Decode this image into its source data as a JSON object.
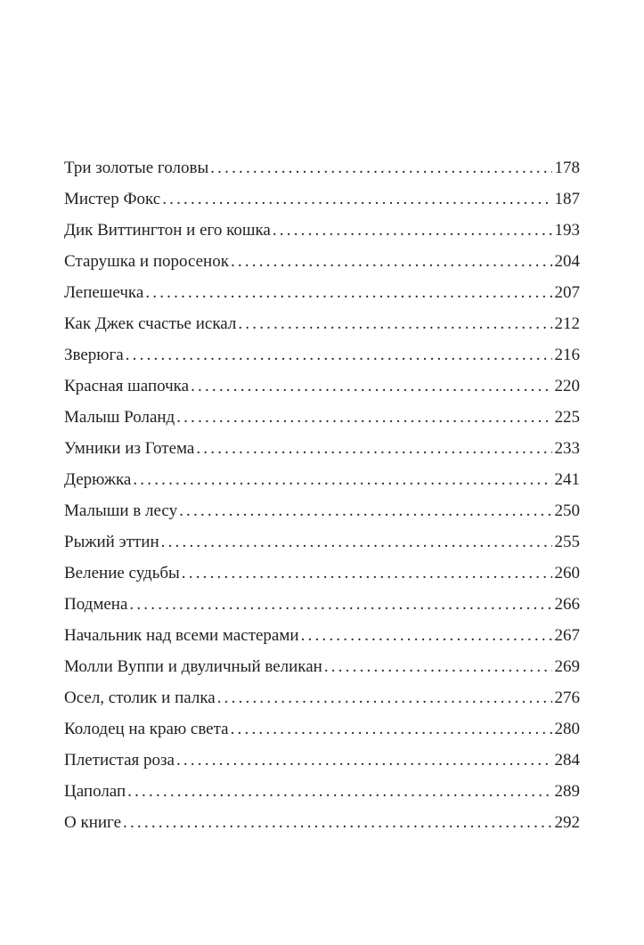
{
  "toc": [
    {
      "title": "Три золотые головы",
      "page": "178"
    },
    {
      "title": "Мистер Фокс",
      "page": "187"
    },
    {
      "title": "Дик Виттингтон и его кошка",
      "page": "193"
    },
    {
      "title": "Старушка и поросенок",
      "page": "204"
    },
    {
      "title": "Лепешечка",
      "page": "207"
    },
    {
      "title": "Как Джек счастье искал",
      "page": "212"
    },
    {
      "title": "Зверюга",
      "page": "216"
    },
    {
      "title": "Красная шапочка",
      "page": "220"
    },
    {
      "title": "Малыш Роланд",
      "page": "225"
    },
    {
      "title": "Умники из Готема",
      "page": "233"
    },
    {
      "title": "Дерюжка",
      "page": "241"
    },
    {
      "title": "Малыши в лесу",
      "page": "250"
    },
    {
      "title": "Рыжий эттин",
      "page": "255"
    },
    {
      "title": "Веление судьбы",
      "page": "260"
    },
    {
      "title": "Подмена",
      "page": "266"
    },
    {
      "title": "Начальник над всеми мастерами",
      "page": "267"
    },
    {
      "title": "Молли Вуппи и двуличный великан",
      "page": "269"
    },
    {
      "title": "Осел, столик и палка",
      "page": "276"
    },
    {
      "title": "Колодец на краю света",
      "page": "280"
    },
    {
      "title": "Плетистая роза",
      "page": "284"
    },
    {
      "title": "Цаполап",
      "page": "289"
    },
    {
      "title": "О книге",
      "page": "292"
    }
  ]
}
